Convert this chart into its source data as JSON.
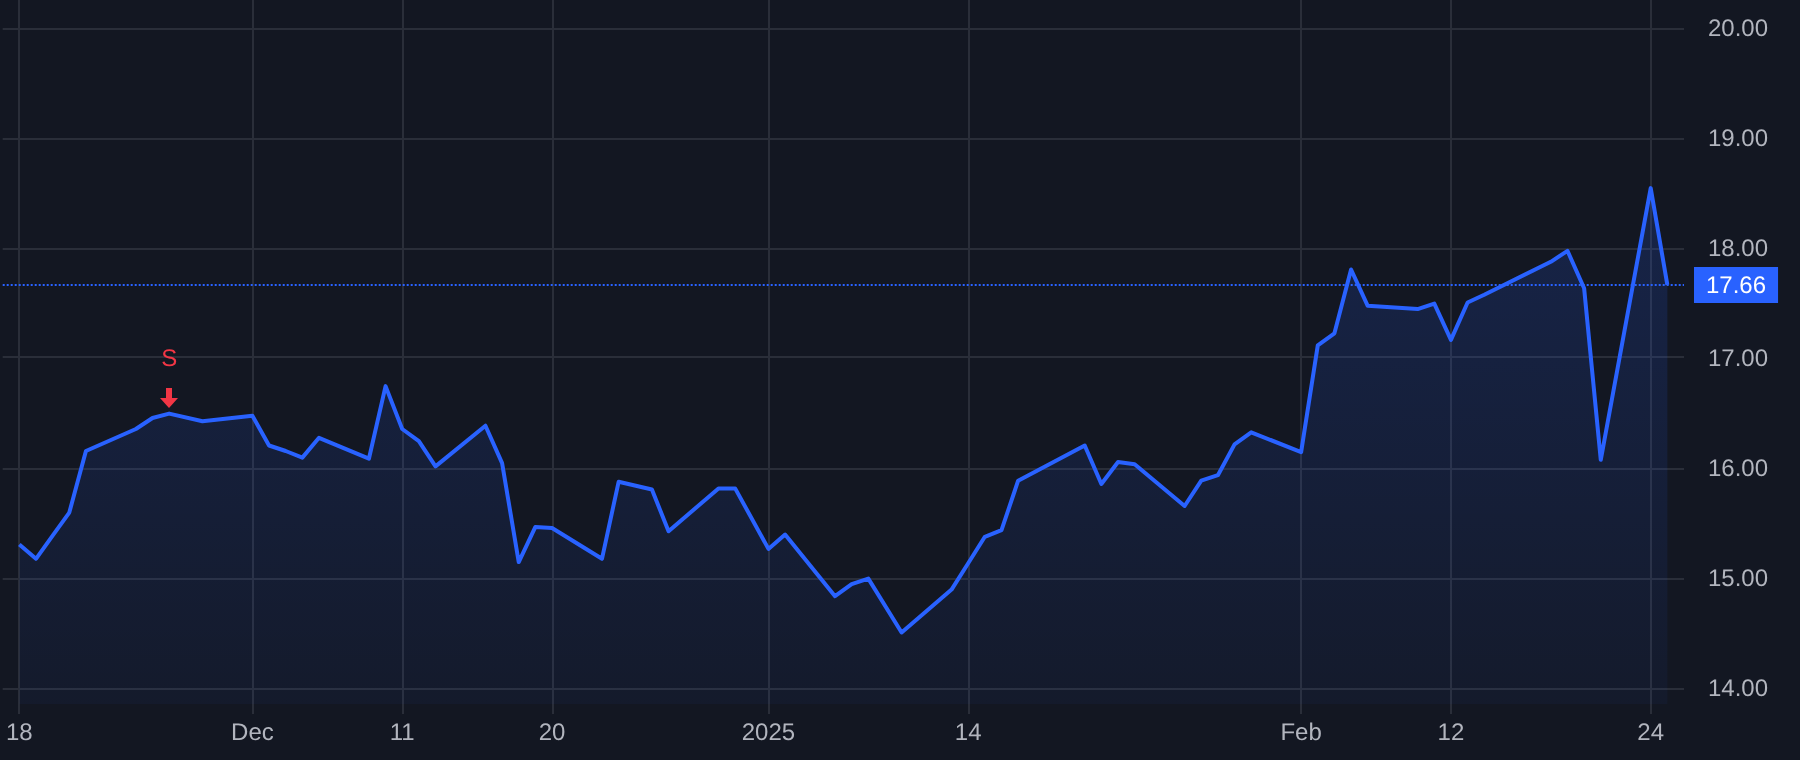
{
  "chart_data": {
    "type": "area",
    "x": [
      "2024-11-18",
      "2024-11-19",
      "2024-11-20",
      "2024-11-21",
      "2024-11-22",
      "2024-11-25",
      "2024-11-26",
      "2024-11-27",
      "2024-11-29",
      "2024-12-02",
      "2024-12-03",
      "2024-12-04",
      "2024-12-05",
      "2024-12-06",
      "2024-12-09",
      "2024-12-10",
      "2024-12-11",
      "2024-12-12",
      "2024-12-13",
      "2024-12-16",
      "2024-12-17",
      "2024-12-18",
      "2024-12-19",
      "2024-12-20",
      "2024-12-23",
      "2024-12-24",
      "2024-12-26",
      "2024-12-27",
      "2024-12-30",
      "2024-12-31",
      "2025-01-02",
      "2025-01-03",
      "2025-01-06",
      "2025-01-07",
      "2025-01-08",
      "2025-01-10",
      "2025-01-13",
      "2025-01-14",
      "2025-01-15",
      "2025-01-16",
      "2025-01-17",
      "2025-01-21",
      "2025-01-22",
      "2025-01-23",
      "2025-01-24",
      "2025-01-27",
      "2025-01-28",
      "2025-01-29",
      "2025-01-30",
      "2025-01-31",
      "2025-02-03",
      "2025-02-04",
      "2025-02-05",
      "2025-02-06",
      "2025-02-07",
      "2025-02-10",
      "2025-02-11",
      "2025-02-12",
      "2025-02-13",
      "2025-02-14",
      "2025-02-18",
      "2025-02-19",
      "2025-02-20",
      "2025-02-21",
      "2025-02-24",
      "2025-02-25"
    ],
    "series": [
      {
        "color": "#2962ff",
        "values": [
          15.3,
          15.17,
          15.38,
          15.59,
          16.15,
          16.35,
          16.45,
          16.49,
          16.42,
          16.47,
          16.2,
          16.15,
          16.09,
          16.27,
          16.08,
          16.74,
          16.35,
          16.24,
          16.01,
          16.38,
          16.04,
          15.14,
          15.46,
          15.45,
          15.17,
          15.87,
          15.8,
          15.42,
          15.81,
          15.81,
          15.26,
          15.39,
          14.83,
          14.94,
          14.99,
          14.5,
          14.89,
          15.13,
          15.37,
          15.43,
          15.88,
          16.2,
          15.85,
          16.05,
          16.03,
          15.65,
          15.88,
          15.93,
          16.21,
          16.32,
          16.14,
          17.11,
          17.22,
          17.8,
          17.47,
          17.44,
          17.49,
          17.16,
          17.5,
          17.57,
          17.87,
          17.97,
          17.63,
          16.07,
          18.54,
          17.66
        ]
      }
    ],
    "xlim": [
      "2024-11-17",
      "2025-02-26"
    ],
    "xticks": [
      {
        "value": "2024-11-18",
        "label": "18"
      },
      {
        "value": "2024-12-02",
        "label": "Dec"
      },
      {
        "value": "2024-12-11",
        "label": "11"
      },
      {
        "value": "2024-12-20",
        "label": "20"
      },
      {
        "value": "2025-01-02",
        "label": "2025"
      },
      {
        "value": "2025-01-14",
        "label": "14"
      },
      {
        "value": "2025-02-03",
        "label": "Feb"
      },
      {
        "value": "2025-02-12",
        "label": "12"
      },
      {
        "value": "2025-02-24",
        "label": "24"
      }
    ],
    "ylim": [
      13.85,
      20.25
    ],
    "yticks": [
      {
        "value": 14,
        "label": "14.00"
      },
      {
        "value": 15,
        "label": "15.00"
      },
      {
        "value": 16,
        "label": "16.00"
      },
      {
        "value": 17,
        "label": "17.00"
      },
      {
        "value": 18,
        "label": "18.00"
      },
      {
        "value": 19,
        "label": "19.00"
      },
      {
        "value": 20,
        "label": "20.00"
      }
    ],
    "ref_lines": [
      {
        "axis": "y",
        "value": 17.66,
        "label": "17.66",
        "color": "#2962ff",
        "line_style": "dotted"
      }
    ],
    "annotations": [
      {
        "text": "S",
        "x": "2024-11-27",
        "y": 16.49
      }
    ],
    "grid": true
  }
}
